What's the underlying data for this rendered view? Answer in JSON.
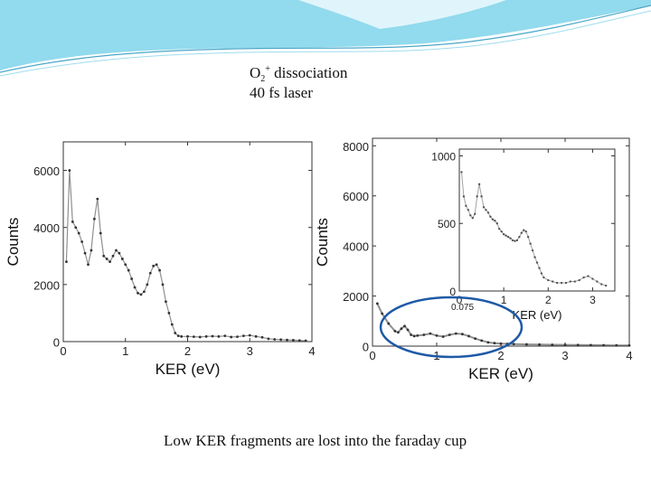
{
  "slide": {
    "title": {
      "ion": "O",
      "sub": "2",
      "sup": "+",
      "rest": " dissociation",
      "line2": "40 fs laser"
    },
    "caption": "Low KER fragments are lost into the faraday cup",
    "accent_color": "#1f5aa6",
    "banner_color": "#7fd3ea"
  },
  "chart_data": [
    {
      "type": "scatter",
      "title": "",
      "xlabel": "KER (eV)",
      "ylabel": "Counts",
      "xlim": [
        0,
        4
      ],
      "ylim": [
        0,
        7000
      ],
      "xticks": [
        "0",
        "1",
        "2",
        "3",
        "4"
      ],
      "yticks": [
        "0",
        "2000",
        "4000",
        "6000"
      ],
      "series": [
        {
          "x": [
            0.05,
            0.1,
            0.15,
            0.2,
            0.25,
            0.3,
            0.35,
            0.4,
            0.45,
            0.5,
            0.55,
            0.6,
            0.65,
            0.7,
            0.75,
            0.8,
            0.85,
            0.9,
            0.95,
            1.0,
            1.05,
            1.1,
            1.15,
            1.2,
            1.25,
            1.3,
            1.35,
            1.4,
            1.45,
            1.5,
            1.55,
            1.6,
            1.65,
            1.7,
            1.75,
            1.8,
            1.85,
            1.9,
            2.0,
            2.1,
            2.2,
            2.3,
            2.4,
            2.5,
            2.6,
            2.7,
            2.8,
            2.9,
            3.0,
            3.1,
            3.2,
            3.3,
            3.4,
            3.5,
            3.6,
            3.7,
            3.8,
            3.9
          ],
          "y": [
            2800,
            6000,
            4200,
            4000,
            3800,
            3500,
            3100,
            2700,
            3200,
            4300,
            5000,
            3800,
            3000,
            2900,
            2800,
            3000,
            3200,
            3100,
            2900,
            2700,
            2500,
            2200,
            1900,
            1700,
            1650,
            1750,
            2000,
            2400,
            2650,
            2700,
            2500,
            2000,
            1400,
            1000,
            600,
            300,
            200,
            180,
            180,
            170,
            160,
            180,
            190,
            180,
            200,
            160,
            170,
            200,
            220,
            180,
            150,
            100,
            80,
            70,
            60,
            50,
            40,
            30
          ]
        }
      ]
    },
    {
      "type": "scatter",
      "title": "",
      "xlabel": "KER (eV)",
      "ylabel": "Counts",
      "xlim": [
        0,
        4
      ],
      "ylim": [
        0,
        8300
      ],
      "xticks": [
        "0",
        "1",
        "2",
        "3",
        "4"
      ],
      "yticks": [
        "0",
        "2000",
        "4000",
        "6000",
        "8000"
      ],
      "annotation": "0.075",
      "series": [
        {
          "x": [
            0.075,
            0.15,
            0.25,
            0.35,
            0.4,
            0.45,
            0.5,
            0.55,
            0.6,
            0.65,
            0.7,
            0.8,
            0.9,
            1.0,
            1.1,
            1.2,
            1.3,
            1.4,
            1.5,
            1.6,
            1.7,
            1.8,
            1.9,
            2.0,
            2.1,
            2.2,
            2.4,
            2.6,
            2.8,
            3.0,
            3.2,
            3.4,
            3.6,
            3.8,
            4.0
          ],
          "y": [
            1700,
            1300,
            900,
            600,
            550,
            700,
            800,
            650,
            450,
            400,
            420,
            450,
            500,
            420,
            380,
            450,
            500,
            480,
            400,
            300,
            220,
            150,
            120,
            100,
            90,
            80,
            70,
            60,
            55,
            50,
            45,
            40,
            35,
            30,
            25
          ]
        }
      ],
      "inset": {
        "xlabel": "KER (eV)",
        "xlim": [
          0,
          3.5
        ],
        "ylim": [
          0,
          1050
        ],
        "xticks": [
          "0",
          "1",
          "2",
          "3"
        ],
        "yticks": [
          "0",
          "500",
          "1000"
        ],
        "series": [
          {
            "x": [
              0.05,
              0.1,
              0.15,
              0.2,
              0.25,
              0.3,
              0.35,
              0.4,
              0.45,
              0.5,
              0.55,
              0.6,
              0.65,
              0.7,
              0.75,
              0.8,
              0.85,
              0.9,
              0.95,
              1.0,
              1.05,
              1.1,
              1.15,
              1.2,
              1.25,
              1.3,
              1.35,
              1.4,
              1.45,
              1.5,
              1.55,
              1.6,
              1.65,
              1.7,
              1.75,
              1.8,
              1.85,
              1.9,
              2.0,
              2.1,
              2.2,
              2.3,
              2.4,
              2.5,
              2.6,
              2.7,
              2.8,
              2.9,
              3.0,
              3.1,
              3.2,
              3.3
            ],
            "y": [
              880,
              700,
              630,
              600,
              560,
              540,
              570,
              700,
              790,
              700,
              620,
              600,
              580,
              550,
              530,
              520,
              500,
              460,
              440,
              420,
              410,
              400,
              390,
              375,
              370,
              375,
              400,
              430,
              450,
              440,
              400,
              350,
              300,
              250,
              210,
              170,
              130,
              100,
              80,
              70,
              60,
              60,
              60,
              70,
              70,
              80,
              100,
              110,
              90,
              70,
              50,
              40
            ]
          }
        ]
      }
    }
  ]
}
